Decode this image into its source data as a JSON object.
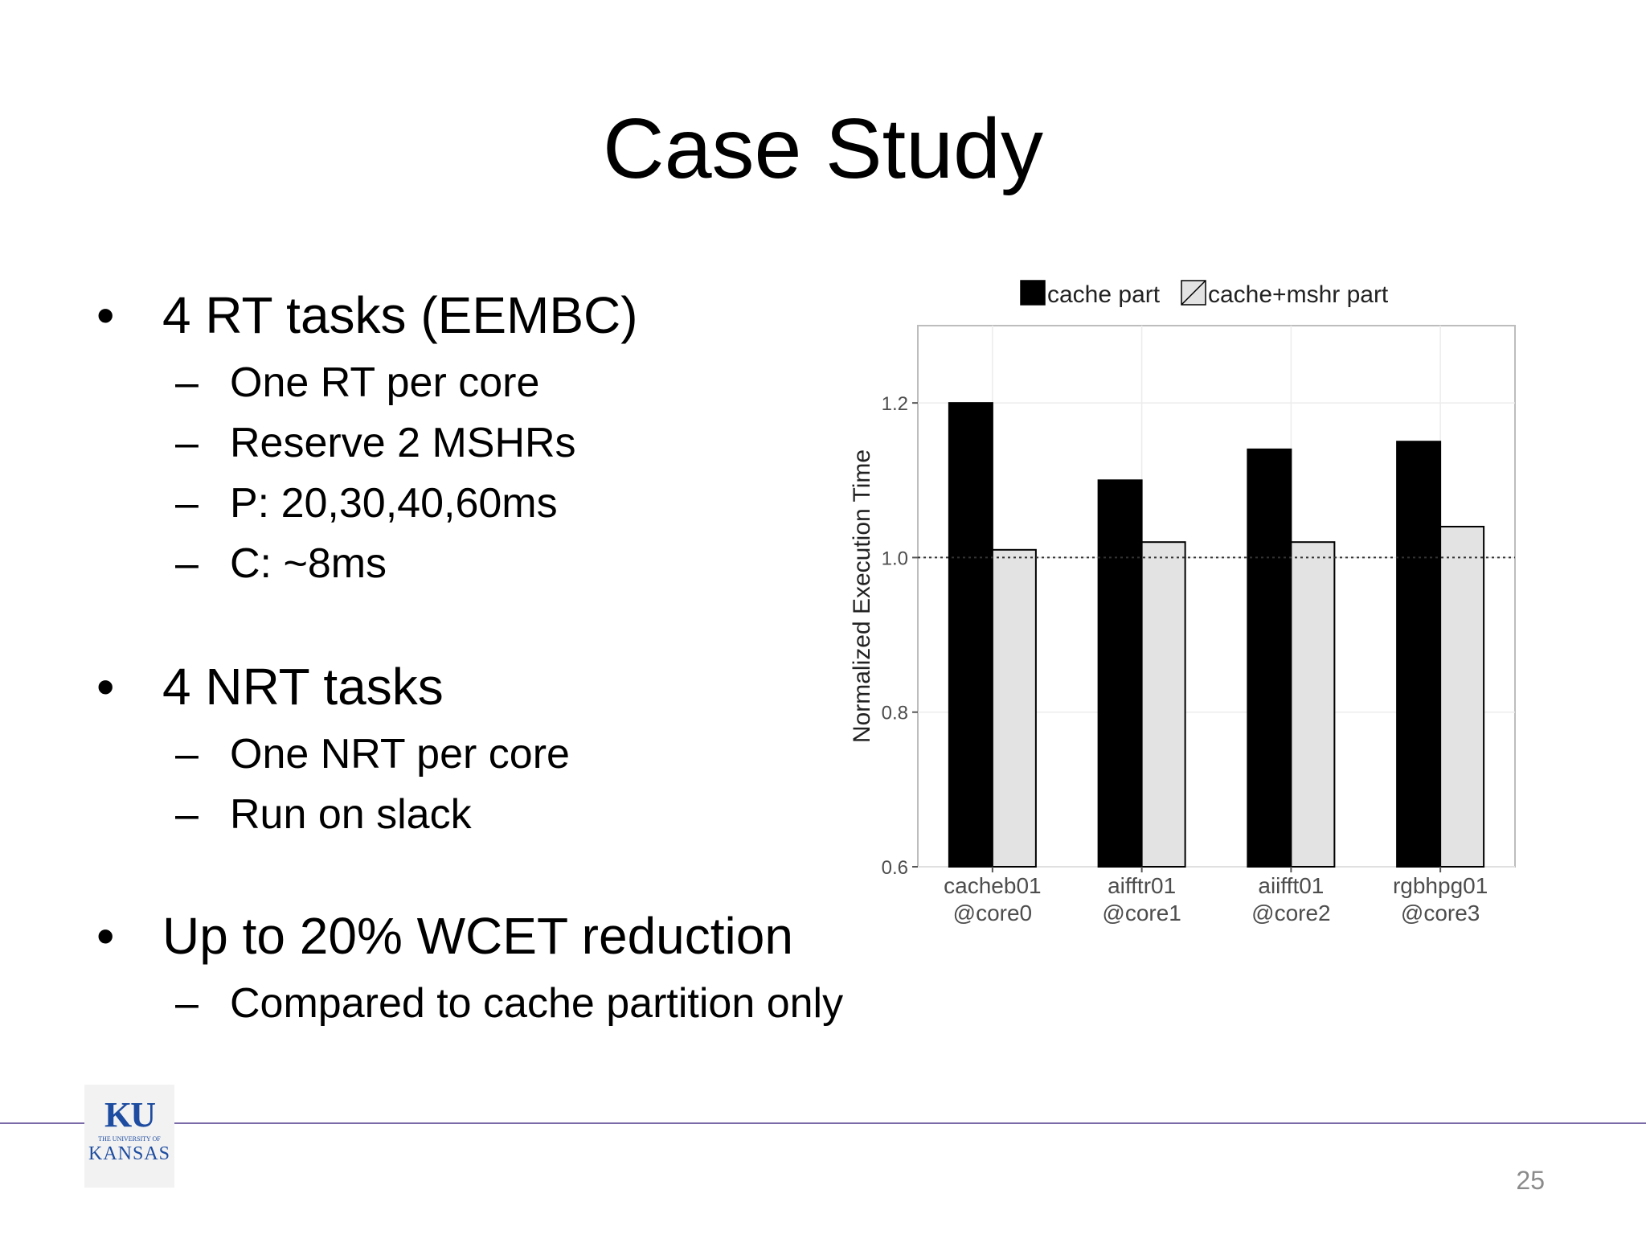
{
  "slide": {
    "title": "Case Study",
    "page_number": "25",
    "logo": {
      "ku": "KU",
      "small": "THE UNIVERSITY OF",
      "kansas": "KANSAS"
    },
    "bullets": [
      {
        "text": "4 RT tasks (EEMBC)",
        "sub": [
          "One RT per core",
          "Reserve 2 MSHRs",
          "P: 20,30,40,60ms",
          "C: ~8ms"
        ]
      },
      {
        "text": "4 NRT tasks",
        "sub": [
          "One NRT per core",
          "Run on slack"
        ]
      },
      {
        "text": "Up to 20% WCET reduction",
        "sub": [
          "Compared to cache partition only"
        ]
      }
    ]
  },
  "chart_data": {
    "type": "bar",
    "categories": [
      [
        "cacheb01",
        "@core0"
      ],
      [
        "aifftr01",
        "@core1"
      ],
      [
        "aiifft01",
        "@core2"
      ],
      [
        "rgbhpg01",
        "@core3"
      ]
    ],
    "series": [
      {
        "name": "cache part",
        "values": [
          1.2,
          1.1,
          1.14,
          1.15
        ],
        "color": "#000000"
      },
      {
        "name": "cache+mshr part",
        "values": [
          1.01,
          1.02,
          1.02,
          1.04
        ],
        "color": "#e3e3e3"
      }
    ],
    "ylabel": "Normalized Execution Time",
    "ylim": [
      0.6,
      1.3
    ],
    "yticks": [
      "0.6",
      "0.8",
      "1.0",
      "1.2"
    ],
    "reference_line": 1.0,
    "legend_position": "top",
    "grid": true
  }
}
